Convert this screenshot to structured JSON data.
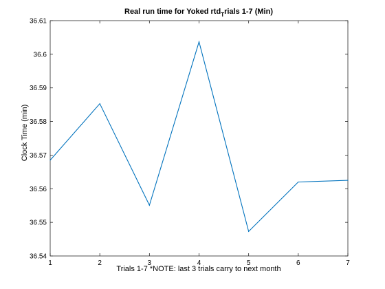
{
  "chart_data": {
    "type": "line",
    "title": "Real run time for Yoked rtd_trials 1-7 (Min)",
    "title_parts": {
      "before": "Real run time for Yoked rtd",
      "subscript": "T",
      "after": "rials 1-7 (Min)"
    },
    "xlabel": "Trials 1-7 *NOTE: last 3 trials carry to next month",
    "ylabel": "Clock Time (min)",
    "x": [
      1,
      2,
      3,
      4,
      5,
      6,
      7
    ],
    "series": [
      {
        "values": [
          36.5685,
          36.5853,
          36.5551,
          36.6037,
          36.5473,
          36.562,
          36.5625
        ],
        "color": "#0072bd"
      }
    ],
    "xlim": [
      1,
      7
    ],
    "ylim": [
      36.54,
      36.61
    ],
    "xticks": [
      "1",
      "2",
      "3",
      "4",
      "5",
      "6",
      "7"
    ],
    "yticks": [
      "36.54",
      "36.55",
      "36.56",
      "36.57",
      "36.58",
      "36.59",
      "36.6",
      "36.61"
    ],
    "grid": false,
    "box": true
  }
}
